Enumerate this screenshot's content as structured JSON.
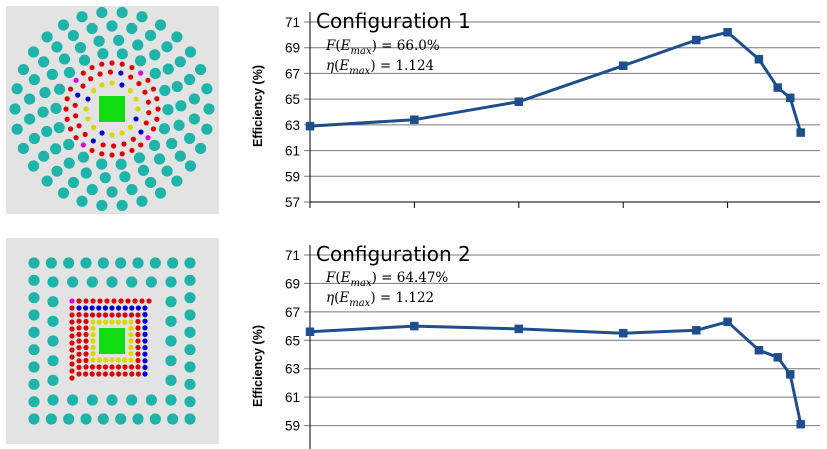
{
  "colors": {
    "series": "#1f4e8c",
    "panel_bg": "#e3e3e3",
    "outer_dot": "#1fb4aa",
    "red_dot": "#dd0000",
    "yellow_dot": "#d8d800",
    "blue_dot": "#0000cc",
    "magenta_dot": "#dd00dd",
    "center_square": "#11dd11"
  },
  "chart_data": [
    {
      "type": "line",
      "title": "Configuration 1",
      "formula_F": "F(E_max) = 66.0%",
      "formula_eta": "η(E_max) = 1.124",
      "xlabel": "",
      "ylabel": "Efficiency (%)",
      "ylim": [
        57,
        71
      ],
      "yticks": [
        "71",
        "69",
        "67",
        "65",
        "63",
        "61",
        "59",
        "57"
      ],
      "grid": true,
      "x": [
        0,
        1,
        2,
        3,
        3.7,
        4,
        4.3,
        4.48,
        4.6,
        4.7
      ],
      "series": [
        {
          "values": [
            62.9,
            63.4,
            64.8,
            67.6,
            69.6,
            70.2,
            68.1,
            65.9,
            65.1,
            62.4
          ]
        }
      ]
    },
    {
      "type": "line",
      "title": "Configuration 2",
      "formula_F": "F(E_max) = 64.47%",
      "formula_eta": "η(E_max) = 1.122",
      "xlabel": "",
      "ylabel": "Efficiency (%)",
      "ylim": [
        57,
        71
      ],
      "yticks": [
        "71",
        "69",
        "67",
        "65",
        "63",
        "61",
        "59"
      ],
      "grid": true,
      "x": [
        0,
        1,
        2,
        3,
        3.7,
        4,
        4.3,
        4.48,
        4.6,
        4.7
      ],
      "series": [
        {
          "values": [
            65.6,
            66.0,
            65.8,
            65.5,
            65.7,
            66.3,
            64.3,
            63.8,
            62.6,
            59.1
          ]
        }
      ]
    }
  ]
}
